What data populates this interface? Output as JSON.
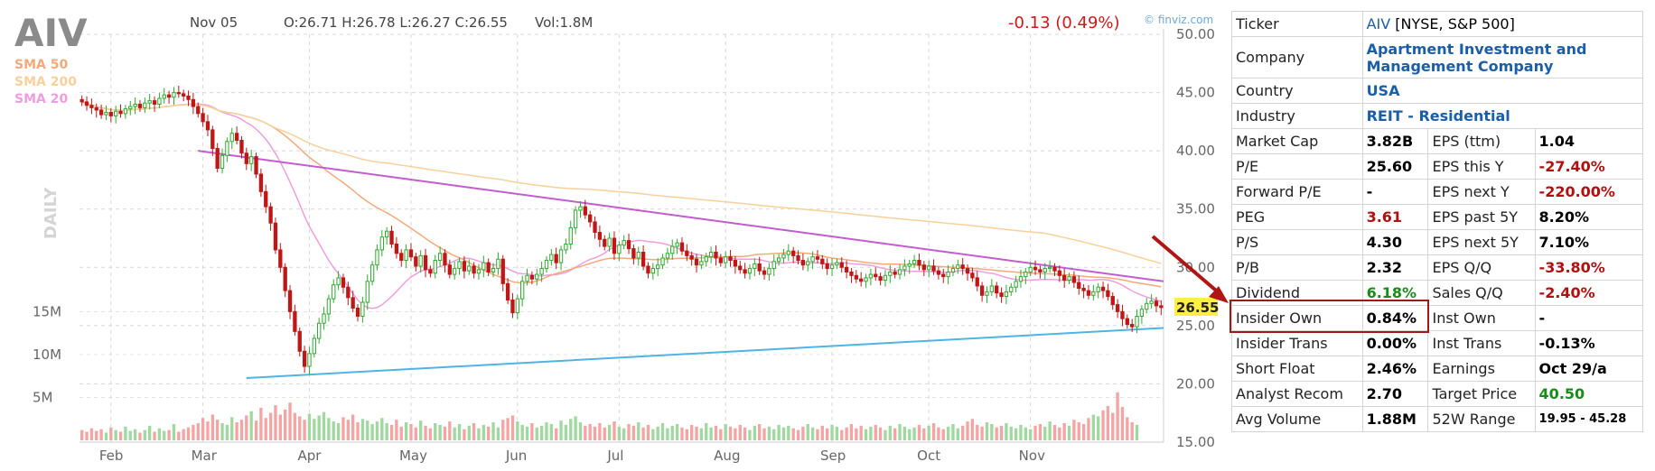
{
  "header": {
    "ticker": "AIV",
    "date": "Nov 05",
    "ohlc": "O:26.71 H:26.78 L:26.27 C:26.55",
    "volume": "Vol:1.8M",
    "change": "-0.13 (0.49%)",
    "source": "© finviz.com",
    "period": "DAILY",
    "last_price": "26.55"
  },
  "legend": [
    {
      "label": "SMA 50",
      "color": "#f4a97a"
    },
    {
      "label": "SMA 200",
      "color": "#f7d19b"
    },
    {
      "label": "SMA 20",
      "color": "#ee9ee0"
    }
  ],
  "colors": {
    "up": "#2eaa2e",
    "down": "#c01616",
    "vol_up": "#9fd99f",
    "vol_down": "#f5a4a4",
    "resistance": "#c25ccf",
    "support": "#4fb3e4",
    "arrow": "#b01515"
  },
  "chart_data": {
    "type": "candlestick",
    "title": "AIV",
    "x_labels": [
      "Feb",
      "Mar",
      "Apr",
      "May",
      "Jun",
      "Jul",
      "Aug",
      "Sep",
      "Oct",
      "Nov"
    ],
    "price_ticks": [
      "50.00",
      "45.00",
      "40.00",
      "35.00",
      "30.00",
      "25.00",
      "20.00",
      "15.00"
    ],
    "price_range": [
      15,
      50
    ],
    "volume_ticks": [
      "15M",
      "10M",
      "5M"
    ],
    "closes": [
      44.2,
      43.9,
      43.7,
      43.5,
      43.1,
      43.3,
      43.0,
      43.4,
      43.2,
      43.6,
      43.8,
      44.0,
      43.7,
      44.1,
      44.3,
      44.0,
      44.5,
      44.8,
      44.6,
      45.0,
      44.9,
      44.7,
      44.4,
      43.8,
      43.2,
      42.5,
      41.8,
      40.2,
      38.5,
      39.6,
      40.8,
      41.5,
      40.9,
      39.8,
      38.9,
      39.5,
      38.0,
      36.5,
      35.2,
      33.8,
      31.5,
      30.0,
      28.0,
      26.2,
      24.5,
      22.8,
      21.5,
      22.6,
      23.9,
      25.2,
      26.0,
      27.3,
      28.5,
      29.1,
      28.3,
      27.4,
      26.5,
      25.8,
      27.0,
      28.8,
      30.2,
      31.5,
      32.6,
      33.1,
      32.0,
      31.2,
      30.6,
      31.5,
      30.9,
      30.1,
      31.0,
      29.8,
      29.5,
      30.6,
      31.2,
      30.2,
      29.4,
      29.9,
      30.5,
      29.7,
      30.1,
      29.5,
      29.8,
      30.4,
      29.6,
      29.9,
      30.7,
      28.6,
      27.2,
      26.1,
      27.3,
      28.8,
      29.3,
      29.0,
      29.4,
      29.9,
      30.6,
      31.1,
      30.4,
      31.5,
      32.0,
      33.4,
      34.9,
      35.2,
      34.5,
      33.9,
      33.0,
      32.4,
      31.8,
      32.5,
      31.2,
      31.9,
      32.3,
      31.6,
      30.8,
      31.3,
      30.1,
      29.5,
      29.9,
      30.2,
      30.8,
      31.2,
      31.8,
      32.1,
      31.4,
      31.0,
      30.7,
      30.2,
      30.5,
      30.9,
      31.3,
      30.8,
      30.4,
      30.9,
      30.6,
      30.1,
      29.8,
      29.5,
      29.9,
      30.3,
      29.7,
      29.4,
      29.9,
      30.5,
      30.8,
      31.1,
      31.4,
      31.0,
      30.6,
      30.2,
      30.5,
      30.9,
      30.7,
      30.3,
      29.9,
      30.2,
      30.4,
      30.0,
      29.6,
      29.3,
      29.0,
      28.8,
      29.1,
      29.4,
      29.2,
      28.9,
      29.3,
      29.6,
      29.4,
      29.8,
      30.1,
      30.3,
      30.6,
      30.2,
      29.8,
      30.1,
      29.7,
      29.4,
      29.2,
      29.6,
      29.9,
      30.2,
      29.9,
      29.5,
      29.1,
      28.4,
      27.6,
      27.9,
      28.4,
      27.8,
      27.5,
      27.9,
      28.3,
      28.8,
      29.2,
      29.6,
      30.0,
      29.8,
      29.6,
      29.9,
      30.0,
      29.7,
      29.3,
      28.9,
      29.2,
      28.7,
      28.2,
      28.0,
      27.6,
      27.9,
      28.3,
      28.0,
      27.5,
      26.8,
      26.2,
      25.6,
      25.1,
      24.9,
      25.8,
      26.4,
      26.9,
      27.1,
      26.7,
      26.55
    ],
    "volumes": [
      1.2,
      1.0,
      1.4,
      1.1,
      1.3,
      0.9,
      1.5,
      1.2,
      1.0,
      1.6,
      1.1,
      1.3,
      0.9,
      1.2,
      1.7,
      1.0,
      1.4,
      1.1,
      1.2,
      1.9,
      1.0,
      1.3,
      1.5,
      1.8,
      2.0,
      2.6,
      2.2,
      3.0,
      2.4,
      2.0,
      1.8,
      2.7,
      2.1,
      2.4,
      2.9,
      3.4,
      2.3,
      3.8,
      2.6,
      3.2,
      4.1,
      3.0,
      3.6,
      4.4,
      3.2,
      2.8,
      2.4,
      3.1,
      2.5,
      2.9,
      3.3,
      2.6,
      2.2,
      2.0,
      2.7,
      2.4,
      3.0,
      2.1,
      2.5,
      2.3,
      1.9,
      2.2,
      2.6,
      2.0,
      1.8,
      2.4,
      1.6,
      2.1,
      1.9,
      1.5,
      2.3,
      1.7,
      1.4,
      2.0,
      1.8,
      1.6,
      2.2,
      1.5,
      1.9,
      1.3,
      1.7,
      2.0,
      1.4,
      1.8,
      1.6,
      2.1,
      1.5,
      2.4,
      2.6,
      2.9,
      2.2,
      1.8,
      1.6,
      2.0,
      1.5,
      1.7,
      2.1,
      1.9,
      1.4,
      2.3,
      1.8,
      2.5,
      2.8,
      2.1,
      1.7,
      1.9,
      1.6,
      2.0,
      1.5,
      1.8,
      2.2,
      1.6,
      1.4,
      1.9,
      1.7,
      2.1,
      1.5,
      1.8,
      1.3,
      1.6,
      2.0,
      1.4,
      1.7,
      1.9,
      1.5,
      1.3,
      1.8,
      1.6,
      1.4,
      2.0,
      1.5,
      1.7,
      1.3,
      1.9,
      1.6,
      1.4,
      1.8,
      1.5,
      1.2,
      1.7,
      1.9,
      1.4,
      1.6,
      1.3,
      1.8,
      1.5,
      1.7,
      1.4,
      1.2,
      1.6,
      1.9,
      1.5,
      1.3,
      1.7,
      1.4,
      1.8,
      1.6,
      1.2,
      1.5,
      1.9,
      1.4,
      1.7,
      1.3,
      1.6,
      1.8,
      1.5,
      1.2,
      1.7,
      1.4,
      1.9,
      1.6,
      1.3,
      1.5,
      1.8,
      1.4,
      1.7,
      2.0,
      1.5,
      1.3,
      1.6,
      1.9,
      1.4,
      1.7,
      2.2,
      2.5,
      1.8,
      1.6,
      2.1,
      1.9,
      1.5,
      1.7,
      2.0,
      1.6,
      1.4,
      1.8,
      1.5,
      1.3,
      1.7,
      1.9,
      1.6,
      2.2,
      1.8,
      1.5,
      2.0,
      1.7,
      2.4,
      2.1,
      1.9,
      2.6,
      3.0,
      2.8,
      3.5,
      4.0,
      3.2,
      5.6,
      3.9,
      2.7,
      2.1,
      1.8
    ],
    "resistance_line": {
      "start": [
        24,
        40.0
      ],
      "end": [
        200,
        28.8
      ]
    },
    "support_line": {
      "start": [
        34,
        20.5
      ],
      "end": [
        214,
        24.8
      ]
    }
  },
  "fundamentals": {
    "ticker_label": "Ticker",
    "ticker_value": "AIV",
    "ticker_exchange": "[NYSE, S&P 500]",
    "company_label": "Company",
    "company_line1": "Apartment Investment and",
    "company_line2": "Management Company",
    "country_label": "Country",
    "country_value": "USA",
    "industry_label": "Industry",
    "industry_value": "REIT - Residential",
    "rows": [
      {
        "l1": "Market Cap",
        "v1": "3.82B",
        "c1": "",
        "l2": "EPS (ttm)",
        "v2": "1.04",
        "c2": ""
      },
      {
        "l1": "P/E",
        "v1": "25.60",
        "c1": "",
        "l2": "EPS this Y",
        "v2": "-27.40%",
        "c2": "neg"
      },
      {
        "l1": "Forward P/E",
        "v1": "-",
        "c1": "",
        "l2": "EPS next Y",
        "v2": "-220.00%",
        "c2": "neg"
      },
      {
        "l1": "PEG",
        "v1": "3.61",
        "c1": "neg",
        "l2": "EPS past 5Y",
        "v2": "8.20%",
        "c2": ""
      },
      {
        "l1": "P/S",
        "v1": "4.30",
        "c1": "",
        "l2": "EPS next 5Y",
        "v2": "7.10%",
        "c2": ""
      },
      {
        "l1": "P/B",
        "v1": "2.32",
        "c1": "",
        "l2": "EPS Q/Q",
        "v2": "-33.80%",
        "c2": "neg"
      },
      {
        "l1": "Dividend",
        "v1": "6.18%",
        "c1": "pos",
        "l2": "Sales Q/Q",
        "v2": "-2.40%",
        "c2": "neg"
      },
      {
        "l1": "Insider Own",
        "v1": "0.84%",
        "c1": "",
        "l2": "Inst Own",
        "v2": "-",
        "c2": ""
      },
      {
        "l1": "Insider Trans",
        "v1": "0.00%",
        "c1": "",
        "l2": "Inst Trans",
        "v2": "-0.13%",
        "c2": ""
      },
      {
        "l1": "Short Float",
        "v1": "2.46%",
        "c1": "",
        "l2": "Earnings",
        "v2": "Oct 29/a",
        "c2": ""
      },
      {
        "l1": "Analyst Recom",
        "v1": "2.70",
        "c1": "",
        "l2": "Target Price",
        "v2": "40.50",
        "c2": "pos"
      },
      {
        "l1": "Avg Volume",
        "v1": "1.88M",
        "c1": "",
        "l2": "52W Range",
        "v2": "19.95 - 45.28",
        "c2": "small"
      }
    ]
  }
}
